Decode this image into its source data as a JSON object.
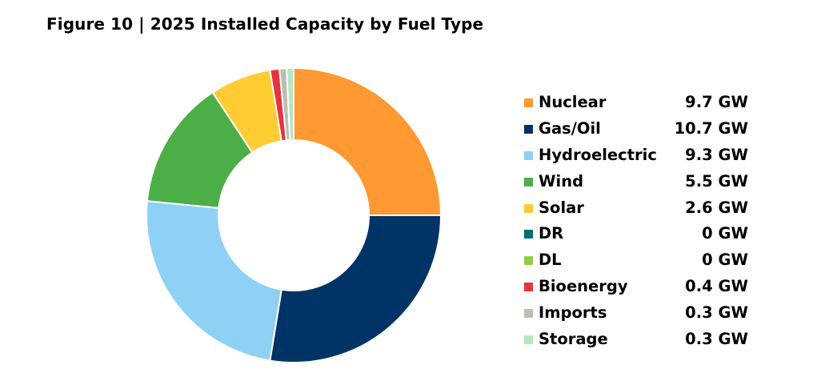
{
  "figure_title": "Figure 10 | 2025 Installed Capacity by Fuel Type",
  "chart_data": {
    "type": "pie",
    "title": "Figure 10 | 2025 Installed Capacity by Fuel Type",
    "unit": "GW",
    "legend_position": "right",
    "series": [
      {
        "name": "Nuclear",
        "value": 9.7,
        "display": "9.7 GW",
        "color": "#FF9933"
      },
      {
        "name": "Gas/Oil",
        "value": 10.7,
        "display": "10.7 GW",
        "color": "#003366"
      },
      {
        "name": "Hydroelectric",
        "value": 9.3,
        "display": "9.3 GW",
        "color": "#8FD1F5"
      },
      {
        "name": "Wind",
        "value": 5.5,
        "display": "5.5 GW",
        "color": "#4CAE47"
      },
      {
        "name": "Solar",
        "value": 2.6,
        "display": "2.6 GW",
        "color": "#FFCC33"
      },
      {
        "name": "DR",
        "value": 0,
        "display": "0 GW",
        "color": "#006E72"
      },
      {
        "name": "DL",
        "value": 0,
        "display": "0 GW",
        "color": "#8FCF4A"
      },
      {
        "name": "Bioenergy",
        "value": 0.4,
        "display": "0.4 GW",
        "color": "#E8333A"
      },
      {
        "name": "Imports",
        "value": 0.3,
        "display": "0.3 GW",
        "color": "#BDBDB0"
      },
      {
        "name": "Storage",
        "value": 0.3,
        "display": "0.3 GW",
        "color": "#B5E6C0"
      }
    ]
  }
}
